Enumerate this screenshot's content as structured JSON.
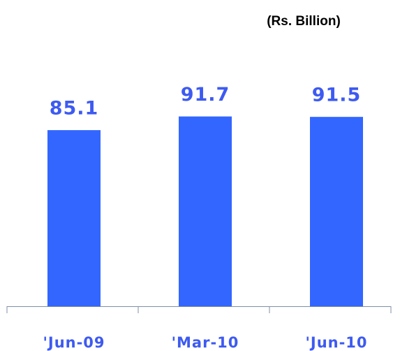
{
  "chart_data": {
    "type": "bar",
    "title": "(Rs. Billion)",
    "categories": [
      "'Jun-09",
      "'Mar-10",
      "'Jun-10"
    ],
    "values": [
      85.1,
      91.7,
      91.5
    ],
    "color": "#3366ff"
  }
}
